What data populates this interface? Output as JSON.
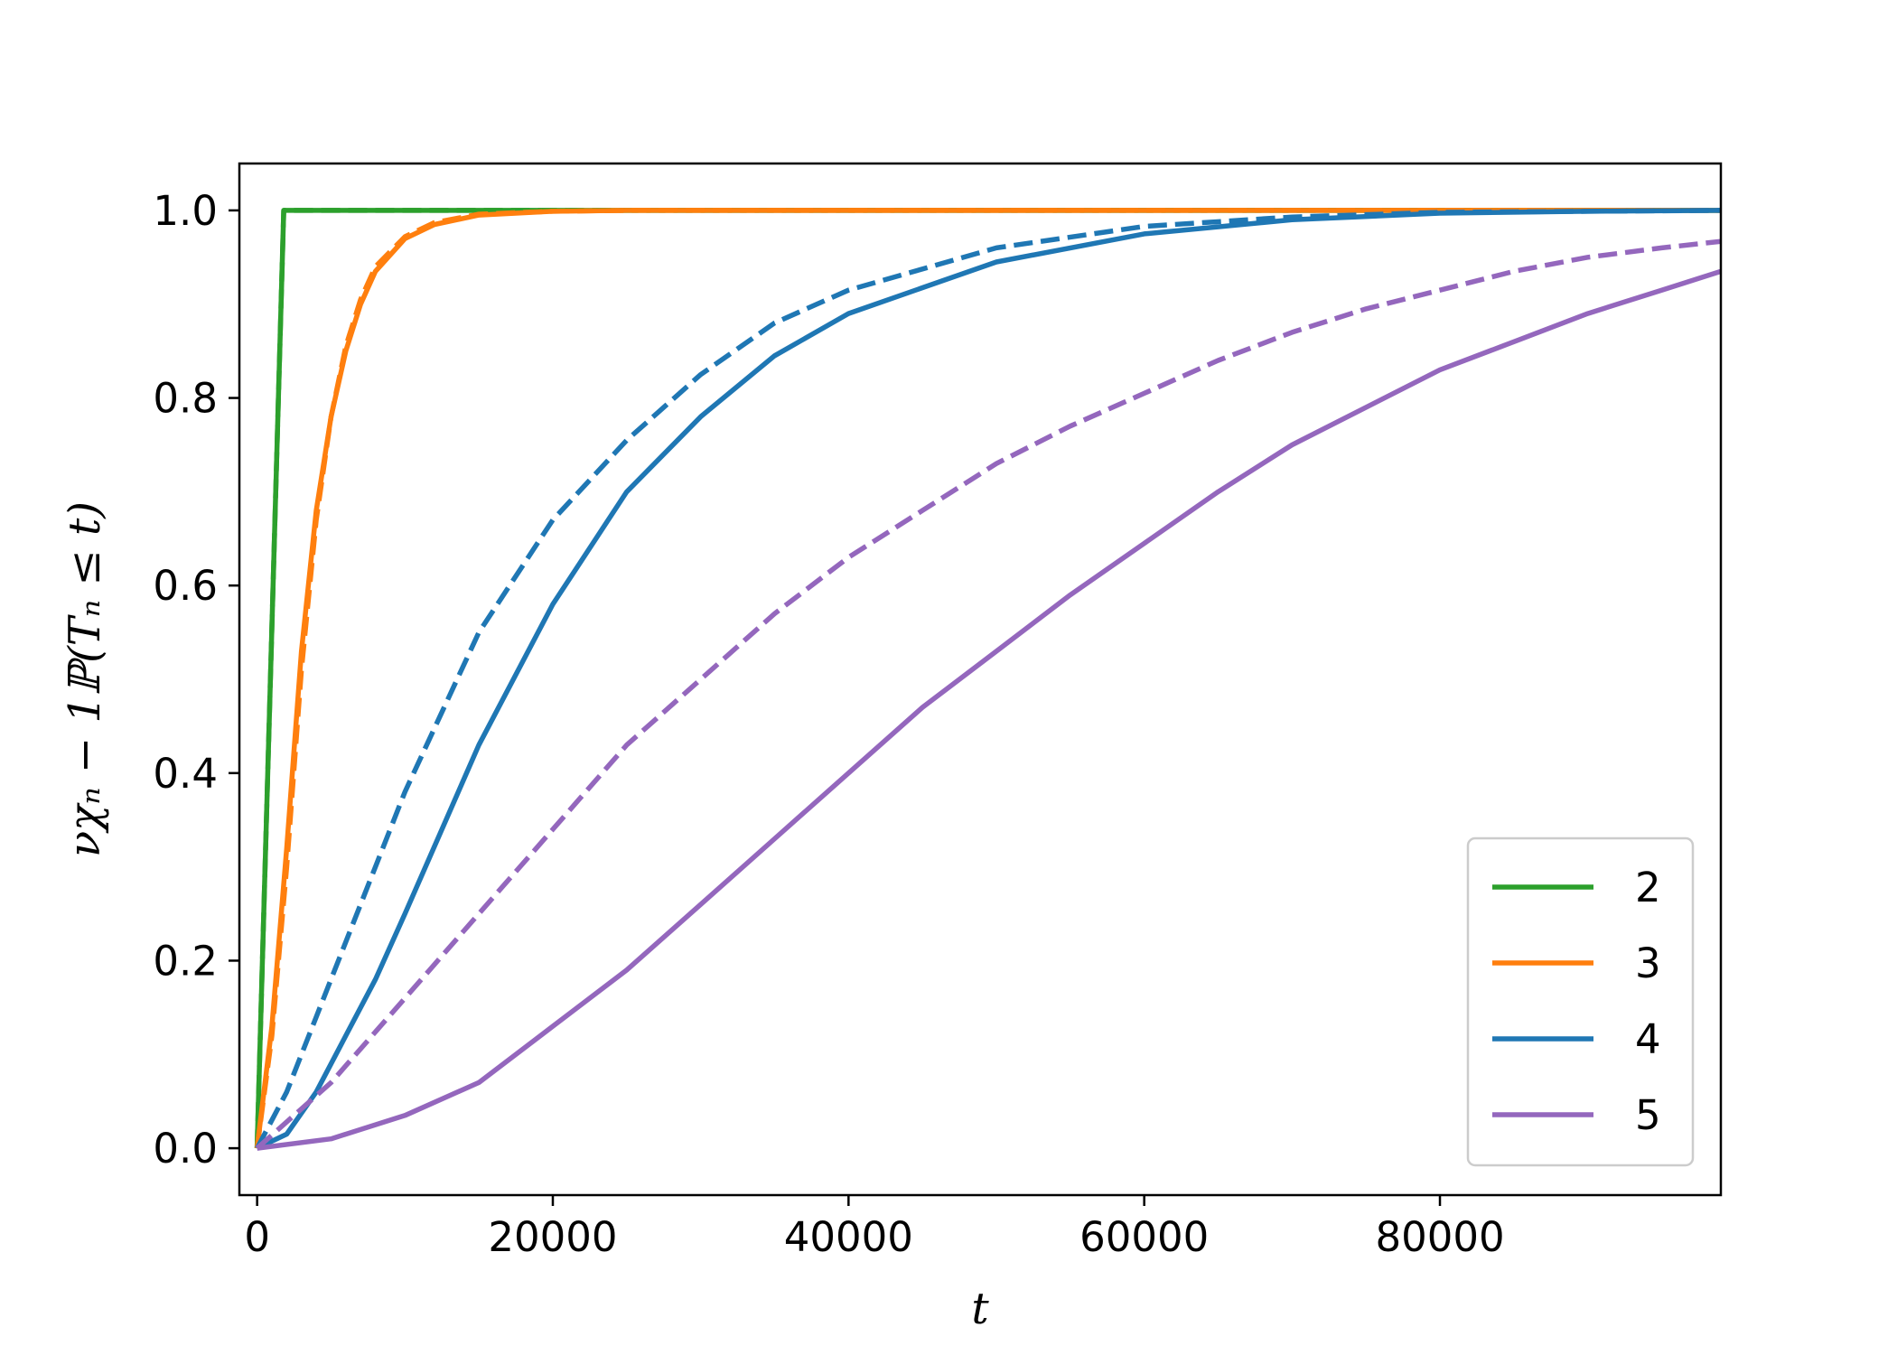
{
  "chart_data": {
    "type": "line",
    "xlabel": "t",
    "ylabel": "νχₙ − 1ℙ(Tₙ ≤ t)",
    "xlim": [
      -1200,
      99000
    ],
    "ylim": [
      -0.05,
      1.05
    ],
    "x_ticks": [
      0,
      20000,
      40000,
      60000,
      80000
    ],
    "x_tick_labels": [
      "0",
      "20000",
      "40000",
      "60000",
      "80000"
    ],
    "y_ticks": [
      0.0,
      0.2,
      0.4,
      0.6,
      0.8,
      1.0
    ],
    "y_tick_labels": [
      "0.0",
      "0.2",
      "0.4",
      "0.6",
      "0.8",
      "1.0"
    ],
    "grid": false,
    "legend_position": "bottom-right",
    "series": [
      {
        "name": "2",
        "color": "#2ca02c",
        "style": "solid",
        "x": [
          0,
          1800,
          3000,
          99000
        ],
        "y": [
          0,
          1.0,
          1.0,
          1.0
        ]
      },
      {
        "name": "2",
        "legend": false,
        "color": "#2ca02c",
        "style": "dashed",
        "x": [
          0,
          1800,
          3000,
          99000
        ],
        "y": [
          0,
          1.0,
          1.0,
          1.0
        ]
      },
      {
        "name": "3",
        "color": "#ff7f0e",
        "style": "solid",
        "x": [
          0,
          1000,
          2000,
          3000,
          4000,
          5000,
          6000,
          7000,
          8000,
          10000,
          12000,
          15000,
          20000,
          25000,
          99000
        ],
        "y": [
          0,
          0.13,
          0.32,
          0.53,
          0.68,
          0.78,
          0.85,
          0.9,
          0.935,
          0.97,
          0.985,
          0.995,
          0.999,
          1.0,
          1.0
        ]
      },
      {
        "name": "3",
        "legend": false,
        "color": "#ff7f0e",
        "style": "dashed",
        "x": [
          0,
          1000,
          2000,
          3000,
          4000,
          5000,
          6000,
          7000,
          8000,
          10000,
          12000,
          15000,
          20000,
          25000,
          99000
        ],
        "y": [
          0,
          0.12,
          0.3,
          0.51,
          0.67,
          0.78,
          0.855,
          0.905,
          0.94,
          0.972,
          0.987,
          0.996,
          0.999,
          1.0,
          1.0
        ]
      },
      {
        "name": "4",
        "color": "#1f77b4",
        "style": "solid",
        "x": [
          0,
          2000,
          4000,
          6000,
          8000,
          10000,
          15000,
          20000,
          25000,
          30000,
          35000,
          40000,
          50000,
          60000,
          70000,
          80000,
          90000,
          99000
        ],
        "y": [
          0,
          0.015,
          0.06,
          0.12,
          0.18,
          0.25,
          0.43,
          0.58,
          0.7,
          0.78,
          0.845,
          0.89,
          0.945,
          0.975,
          0.99,
          0.997,
          0.999,
          1.0
        ]
      },
      {
        "name": "4",
        "legend": false,
        "color": "#1f77b4",
        "style": "dashed",
        "x": [
          0,
          2000,
          4000,
          6000,
          8000,
          10000,
          15000,
          20000,
          25000,
          30000,
          35000,
          40000,
          50000,
          60000,
          70000,
          80000,
          90000,
          99000
        ],
        "y": [
          0,
          0.06,
          0.14,
          0.22,
          0.3,
          0.38,
          0.55,
          0.67,
          0.755,
          0.825,
          0.88,
          0.915,
          0.96,
          0.983,
          0.993,
          0.998,
          0.999,
          1.0
        ]
      },
      {
        "name": "5",
        "color": "#9467bd",
        "style": "solid",
        "x": [
          0,
          5000,
          10000,
          15000,
          20000,
          25000,
          30000,
          35000,
          40000,
          45000,
          50000,
          55000,
          60000,
          65000,
          70000,
          75000,
          80000,
          85000,
          90000,
          95000,
          99000
        ],
        "y": [
          0,
          0.01,
          0.035,
          0.07,
          0.13,
          0.19,
          0.26,
          0.33,
          0.4,
          0.47,
          0.53,
          0.59,
          0.645,
          0.7,
          0.75,
          0.79,
          0.83,
          0.86,
          0.89,
          0.915,
          0.935
        ]
      },
      {
        "name": "5",
        "legend": false,
        "color": "#9467bd",
        "style": "dashed",
        "x": [
          0,
          5000,
          10000,
          15000,
          20000,
          25000,
          30000,
          35000,
          40000,
          45000,
          50000,
          55000,
          60000,
          65000,
          70000,
          75000,
          80000,
          85000,
          90000,
          95000,
          99000
        ],
        "y": [
          0,
          0.07,
          0.16,
          0.25,
          0.34,
          0.43,
          0.5,
          0.57,
          0.63,
          0.68,
          0.73,
          0.77,
          0.805,
          0.84,
          0.87,
          0.895,
          0.915,
          0.935,
          0.95,
          0.96,
          0.967
        ]
      }
    ]
  }
}
